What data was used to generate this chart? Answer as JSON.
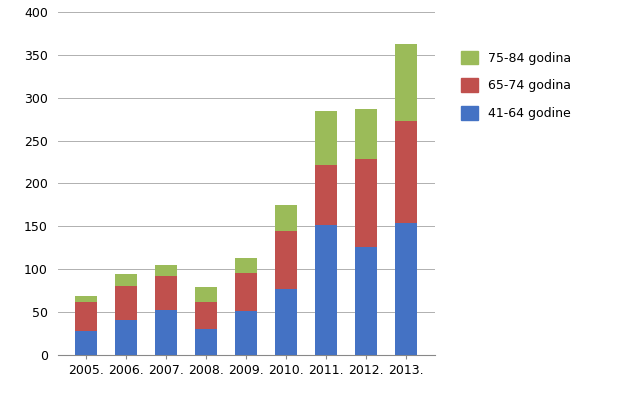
{
  "years": [
    "2005.",
    "2006.",
    "2007.",
    "2008.",
    "2009.",
    "2010.",
    "2011.",
    "2012.",
    "2013."
  ],
  "blue": [
    28,
    41,
    52,
    30,
    51,
    77,
    151,
    126,
    154
  ],
  "red": [
    33,
    39,
    40,
    32,
    44,
    67,
    70,
    102,
    119
  ],
  "green": [
    7,
    14,
    13,
    17,
    18,
    31,
    64,
    59,
    90
  ],
  "blue_color": "#4472C4",
  "red_color": "#C0504D",
  "green_color": "#9BBB59",
  "legend_labels": [
    "75-84 godina",
    "65-74 godina",
    "41-64 godine"
  ],
  "ylim": [
    0,
    400
  ],
  "yticks": [
    0,
    50,
    100,
    150,
    200,
    250,
    300,
    350,
    400
  ],
  "bar_width": 0.55,
  "grid_color": "#b0b0b0",
  "background_color": "#ffffff"
}
